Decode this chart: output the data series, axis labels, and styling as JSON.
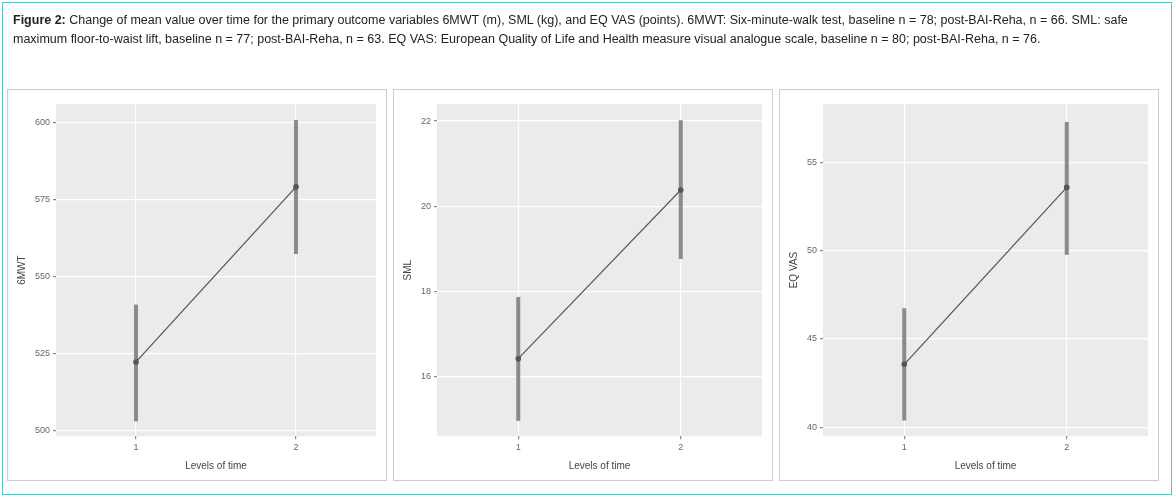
{
  "chart_data": [
    {
      "type": "line",
      "title": "Figure 2:",
      "subtitle": "Change of mean value over time for the primary outcome variables 6MWT (m), SML (kg), and EQ VAS (points). 6MWT: Six-minute-walk test, baseline n = 78; post-BAI-Reha, n = 66. SML: safe maximum floor-to-waist lift, baseline n = 77; post-BAI-Reha, n = 63. EQ VAS: European Quality of Life and Health measure visual analogue scale, baseline n = 80; post-BAI-Reha, n = 76.",
      "categories": [
        "1",
        "2"
      ],
      "xlabel": "Levels of time",
      "ylabel": "6MWT",
      "ylim": [
        498.2,
        606
      ],
      "yticks": [
        500,
        525,
        550,
        575,
        600
      ],
      "grid": true,
      "marker": "circle",
      "series": [
        {
          "color": "#555555",
          "values": [
            522.3,
            579.1
          ],
          "errors": [
            [
              503,
              540.9
            ],
            [
              557.3,
              600.8
            ]
          ]
        }
      ]
    },
    {
      "type": "line",
      "categories": [
        "1",
        "2"
      ],
      "xlabel": "Levels of time",
      "ylabel": "SML",
      "ylim": [
        14.6,
        22.4
      ],
      "yticks": [
        16,
        18,
        20,
        22
      ],
      "grid": true,
      "marker": "circle",
      "series": [
        {
          "color": "#555555",
          "values": [
            16.42,
            20.38
          ],
          "errors": [
            [
              14.96,
              17.87
            ],
            [
              18.76,
              22.02
            ]
          ]
        }
      ]
    },
    {
      "type": "line",
      "categories": [
        "1",
        "2"
      ],
      "xlabel": "Levels of time",
      "ylabel": "EQ VAS",
      "ylim": [
        39.5,
        58.3
      ],
      "yticks": [
        40,
        45,
        50,
        55
      ],
      "grid": true,
      "marker": "circle",
      "series": [
        {
          "color": "#555555",
          "values": [
            43.57,
            53.58
          ],
          "errors": [
            [
              40.39,
              46.74
            ],
            [
              49.77,
              57.28
            ]
          ]
        }
      ]
    }
  ]
}
